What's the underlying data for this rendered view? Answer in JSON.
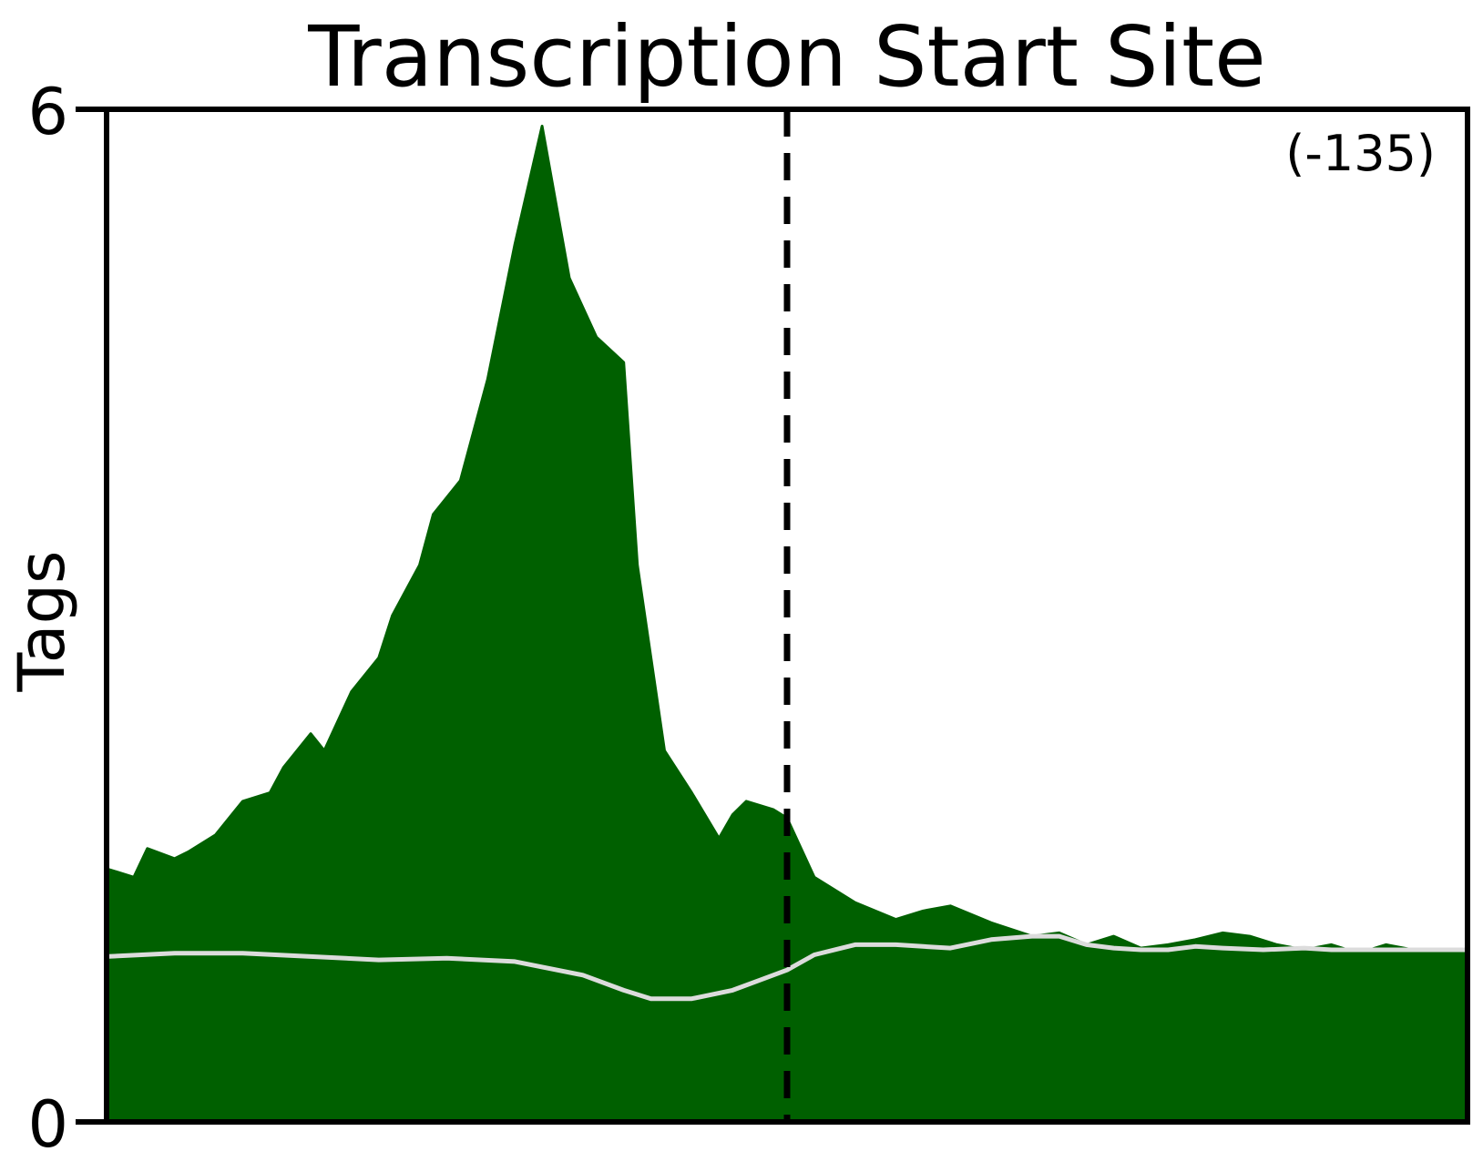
{
  "chart_data": {
    "type": "area",
    "title": "Transcription Start Site",
    "ylabel": "Tags",
    "xlabel": "",
    "ylim": [
      0,
      6
    ],
    "yticks": [
      0,
      6
    ],
    "annotation": "(-135)",
    "grid": false,
    "legend": "none",
    "reference_line": {
      "x": 0.5,
      "style": "dashed",
      "color": "#000000"
    },
    "colors": {
      "fill": "#006000",
      "background_line": "#dcdcdc",
      "frame": "#000000"
    },
    "series": [
      {
        "kind": "filled-area",
        "x": [
          0,
          0.02,
          0.03,
          0.05,
          0.06,
          0.08,
          0.1,
          0.12,
          0.13,
          0.15,
          0.16,
          0.18,
          0.2,
          0.21,
          0.23,
          0.24,
          0.26,
          0.28,
          0.3,
          0.32,
          0.34,
          0.36,
          0.38,
          0.39,
          0.41,
          0.43,
          0.45,
          0.46,
          0.47,
          0.49,
          0.5,
          0.52,
          0.55,
          0.58,
          0.6,
          0.62,
          0.65,
          0.68,
          0.7,
          0.72,
          0.74,
          0.76,
          0.78,
          0.8,
          0.82,
          0.84,
          0.86,
          0.88,
          0.9,
          0.92,
          0.94,
          0.96,
          0.98,
          1.0
        ],
        "y": [
          1.5,
          1.45,
          1.62,
          1.56,
          1.6,
          1.7,
          1.9,
          1.95,
          2.1,
          2.3,
          2.2,
          2.55,
          2.75,
          3.0,
          3.3,
          3.6,
          3.8,
          4.4,
          5.2,
          5.9,
          5.0,
          4.65,
          4.5,
          3.3,
          2.2,
          1.95,
          1.68,
          1.82,
          1.9,
          1.85,
          1.8,
          1.45,
          1.3,
          1.2,
          1.25,
          1.28,
          1.18,
          1.1,
          1.12,
          1.05,
          1.1,
          1.03,
          1.05,
          1.08,
          1.12,
          1.1,
          1.05,
          1.02,
          1.05,
          1.0,
          1.05,
          1.02,
          1.0,
          1.02
        ]
      },
      {
        "kind": "line",
        "x": [
          0,
          0.05,
          0.1,
          0.15,
          0.2,
          0.25,
          0.3,
          0.35,
          0.38,
          0.4,
          0.43,
          0.46,
          0.48,
          0.5,
          0.52,
          0.55,
          0.58,
          0.6,
          0.62,
          0.65,
          0.68,
          0.7,
          0.72,
          0.74,
          0.76,
          0.78,
          0.8,
          0.82,
          0.85,
          0.88,
          0.9,
          0.92,
          0.95,
          0.98,
          1.0
        ],
        "y": [
          0.98,
          1.0,
          1.0,
          0.98,
          0.96,
          0.97,
          0.95,
          0.87,
          0.78,
          0.73,
          0.73,
          0.78,
          0.84,
          0.9,
          0.99,
          1.05,
          1.05,
          1.04,
          1.03,
          1.08,
          1.1,
          1.1,
          1.05,
          1.03,
          1.02,
          1.02,
          1.04,
          1.03,
          1.02,
          1.03,
          1.02,
          1.02,
          1.02,
          1.02,
          1.02
        ]
      }
    ]
  }
}
